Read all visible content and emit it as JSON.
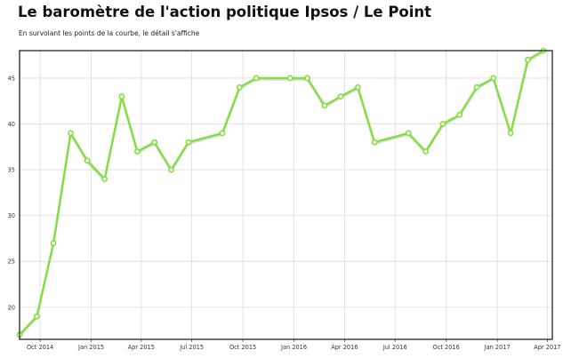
{
  "header": {
    "title": "Le baromètre de l'action politique Ipsos / Le Point",
    "subtitle": "En survolant les points de la courbe, le détail s'affiche"
  },
  "colors": {
    "line": "#7fe03a",
    "marker_fill": "#ffffff",
    "grid": "#dcdcdc",
    "frame": "#222222"
  },
  "chart_data": {
    "type": "line",
    "title": "Le baromètre de l'action politique Ipsos / Le Point",
    "xlabel": "",
    "ylabel": "",
    "grid": true,
    "xlim": [
      "2014-08-25",
      "2017-04-10"
    ],
    "ylim": [
      16.5,
      48
    ],
    "y_ticks": [
      20,
      25,
      30,
      35,
      40,
      45
    ],
    "x_ticks": [
      {
        "date": "2014-10-01",
        "label": "Oct 2014"
      },
      {
        "date": "2015-01-01",
        "label": "Jan 2015"
      },
      {
        "date": "2015-04-01",
        "label": "Apr 2015"
      },
      {
        "date": "2015-07-01",
        "label": "Jul 2015"
      },
      {
        "date": "2015-10-01",
        "label": "Oct 2015"
      },
      {
        "date": "2016-01-01",
        "label": "Jan 2016"
      },
      {
        "date": "2016-04-01",
        "label": "Apr 2016"
      },
      {
        "date": "2016-07-01",
        "label": "Jul 2016"
      },
      {
        "date": "2016-10-01",
        "label": "Oct 2016"
      },
      {
        "date": "2017-01-01",
        "label": "Jan 2017"
      },
      {
        "date": "2017-04-01",
        "label": "Apr 2017"
      }
    ],
    "series": [
      {
        "points": [
          {
            "x": "2014-08-25",
            "y": 17
          },
          {
            "x": "2014-09-25",
            "y": 19
          },
          {
            "x": "2014-10-25",
            "y": 27
          },
          {
            "x": "2014-11-25",
            "y": 39
          },
          {
            "x": "2014-12-25",
            "y": 36
          },
          {
            "x": "2015-01-25",
            "y": 34
          },
          {
            "x": "2015-02-25",
            "y": 43
          },
          {
            "x": "2015-03-25",
            "y": 37
          },
          {
            "x": "2015-04-25",
            "y": 38
          },
          {
            "x": "2015-05-25",
            "y": 35
          },
          {
            "x": "2015-06-25",
            "y": 38
          },
          {
            "x": "2015-08-25",
            "y": 39
          },
          {
            "x": "2015-09-25",
            "y": 44
          },
          {
            "x": "2015-10-25",
            "y": 45
          },
          {
            "x": "2015-12-25",
            "y": 45
          },
          {
            "x": "2016-01-25",
            "y": 45
          },
          {
            "x": "2016-02-25",
            "y": 42
          },
          {
            "x": "2016-03-25",
            "y": 43
          },
          {
            "x": "2016-04-25",
            "y": 44
          },
          {
            "x": "2016-05-25",
            "y": 38
          },
          {
            "x": "2016-07-25",
            "y": 39
          },
          {
            "x": "2016-08-25",
            "y": 37
          },
          {
            "x": "2016-09-25",
            "y": 40
          },
          {
            "x": "2016-10-25",
            "y": 41
          },
          {
            "x": "2016-11-25",
            "y": 44
          },
          {
            "x": "2016-12-25",
            "y": 45
          },
          {
            "x": "2017-01-25",
            "y": 39
          },
          {
            "x": "2017-02-25",
            "y": 47
          },
          {
            "x": "2017-03-25",
            "y": 48
          }
        ]
      }
    ]
  }
}
